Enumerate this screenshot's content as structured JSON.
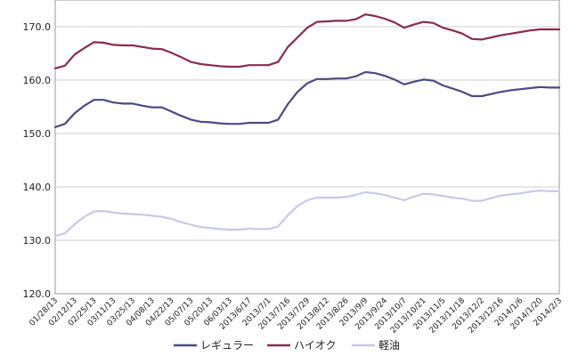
{
  "chart_data": {
    "type": "line",
    "ylim": [
      120,
      175
    ],
    "yticks": [
      "120.0",
      "130.0",
      "140.0",
      "150.0",
      "160.0",
      "170.0"
    ],
    "categories": [
      "01/28/13",
      "02/12/13",
      "02/25/13",
      "03/11/13",
      "03/25/13",
      "04/08/13",
      "04/22/13",
      "05/07/13",
      "05/20/13",
      "06/03/13",
      "2013/6/17",
      "2013/7/1",
      "2013/7/16",
      "2013/7/29",
      "2013/8/12",
      "2013/8/26",
      "2013/9/9",
      "2013/9/24",
      "2013/10/7",
      "2013/10/21",
      "2013/11/5",
      "2013/11/18",
      "2013/12/2",
      "2013/12/16",
      "2014/1/6",
      "2014/1/20",
      "2014/2/3"
    ],
    "x": [
      0,
      1,
      2,
      3,
      4,
      5,
      6,
      7,
      8,
      9,
      10,
      11,
      12,
      13,
      14,
      15,
      16,
      17,
      18,
      19,
      20,
      21,
      22,
      23,
      24,
      25,
      26,
      27,
      28,
      29,
      30,
      31,
      32,
      33,
      34,
      35,
      36,
      37,
      38,
      39,
      40,
      41,
      42,
      43,
      44,
      45,
      46,
      47,
      48,
      49,
      50,
      51,
      52
    ],
    "series": [
      {
        "name": "レギュラー",
        "color": "#4a4a86",
        "values": [
          151.2,
          151.8,
          153.8,
          155.2,
          156.3,
          156.3,
          155.8,
          155.6,
          155.6,
          155.2,
          154.9,
          154.9,
          154.1,
          153.3,
          152.6,
          152.2,
          152.1,
          151.9,
          151.8,
          151.8,
          152.0,
          152.0,
          152.0,
          152.6,
          155.5,
          157.8,
          159.4,
          160.2,
          160.2,
          160.3,
          160.3,
          160.7,
          161.5,
          161.3,
          160.8,
          160.1,
          159.2,
          159.7,
          160.1,
          159.9,
          159.0,
          158.4,
          157.8,
          157.0,
          157.0,
          157.4,
          157.8,
          158.1,
          158.3,
          158.5,
          158.7,
          158.6,
          158.6
        ]
      },
      {
        "name": "ハイオク",
        "color": "#8b2a52",
        "values": [
          162.2,
          162.7,
          164.8,
          166.0,
          167.1,
          167.0,
          166.6,
          166.5,
          166.5,
          166.2,
          165.9,
          165.8,
          165.1,
          164.3,
          163.4,
          163.0,
          162.8,
          162.6,
          162.5,
          162.5,
          162.8,
          162.8,
          162.8,
          163.4,
          166.2,
          168.0,
          169.8,
          170.9,
          171.0,
          171.1,
          171.1,
          171.4,
          172.3,
          172.0,
          171.5,
          170.8,
          169.8,
          170.4,
          170.9,
          170.7,
          169.8,
          169.3,
          168.7,
          167.7,
          167.6,
          168.0,
          168.4,
          168.7,
          169.0,
          169.3,
          169.5,
          169.5,
          169.5
        ]
      },
      {
        "name": "軽油",
        "color": "#c8c8ec",
        "values": [
          130.8,
          131.3,
          133.0,
          134.4,
          135.4,
          135.5,
          135.2,
          135.0,
          134.9,
          134.8,
          134.6,
          134.4,
          134.0,
          133.4,
          132.9,
          132.5,
          132.3,
          132.1,
          132.0,
          132.0,
          132.2,
          132.1,
          132.1,
          132.6,
          134.7,
          136.4,
          137.5,
          138.0,
          138.0,
          138.0,
          138.1,
          138.5,
          139.0,
          138.8,
          138.5,
          138.0,
          137.5,
          138.2,
          138.7,
          138.6,
          138.3,
          138.0,
          137.8,
          137.4,
          137.4,
          137.9,
          138.4,
          138.6,
          138.8,
          139.1,
          139.3,
          139.2,
          139.2
        ]
      }
    ],
    "legend_position": "bottom",
    "grid": true
  }
}
